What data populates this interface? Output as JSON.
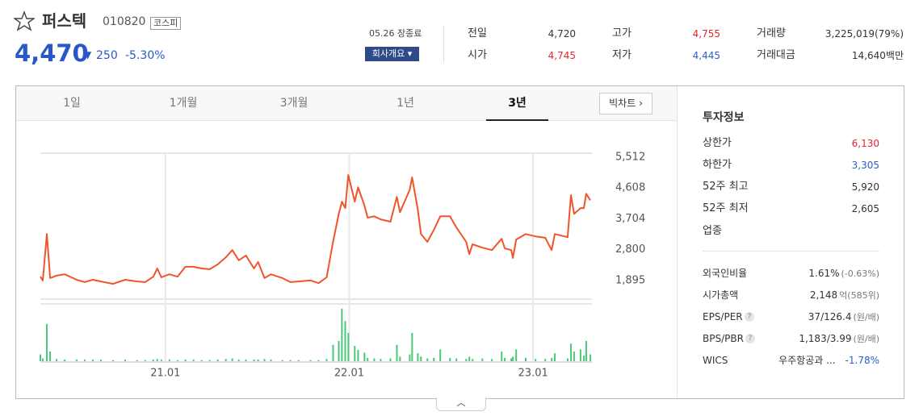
{
  "header": {
    "name": "퍼스텍",
    "code": "010820",
    "market": "코스피",
    "price": "4,470",
    "change": "250",
    "change_rate": "-5.30%",
    "status": "05.26 장종료",
    "company_button": "회사개요"
  },
  "quotes": [
    {
      "label": "전일",
      "value": "4,720",
      "color": "#333333"
    },
    {
      "label": "시가",
      "value": "4,745",
      "color": "#e0262f"
    },
    {
      "label": "고가",
      "value": "4,755",
      "color": "#e0262f"
    },
    {
      "label": "저가",
      "value": "4,445",
      "color": "#2e5cc8"
    },
    {
      "label": "거래량",
      "value": "3,225,019(79%)",
      "color": "#333333"
    },
    {
      "label": "거래대금",
      "value": "14,640백만",
      "color": "#333333"
    }
  ],
  "tabs": [
    "1일",
    "1개월",
    "3개월",
    "1년",
    "3년"
  ],
  "big_chart_button": "빅차트",
  "invest_info": {
    "title": "투자정보",
    "rows": [
      {
        "label": "상한가",
        "value": "6,130",
        "color": "#e0262f"
      },
      {
        "label": "하한가",
        "value": "3,305",
        "color": "#2e5cc8"
      },
      {
        "label": "52주 최고",
        "value": "5,920",
        "color": "#333333"
      },
      {
        "label": "52주 최저",
        "value": "2,605",
        "color": "#333333"
      },
      {
        "label": "업종"
      }
    ],
    "rows2": [
      {
        "label": "외국인비율",
        "value": "1.61%",
        "note": "(-0.63%)"
      },
      {
        "label": "시가총액",
        "value": "2,148",
        "note": "억(585위)"
      },
      {
        "label": "EPS/PER",
        "value": "37/126.4",
        "note": "(원/배)"
      },
      {
        "label": "BPS/PBR",
        "value": "1,183/3.99",
        "note": "(원/배)"
      },
      {
        "label": "WICS",
        "value": "우주항공과 ...",
        "note": "-1.78%"
      }
    ]
  },
  "chart_data": {
    "type": "line",
    "x": [
      2020.32,
      2020.333,
      2020.355,
      2020.373,
      2020.408,
      2020.452,
      2020.517,
      2020.561,
      2020.605,
      2020.649,
      2020.715,
      2020.781,
      2020.846,
      2020.89,
      2020.934,
      2020.956,
      2020.978,
      2021.022,
      2021.066,
      2021.109,
      2021.153,
      2021.197,
      2021.241,
      2021.285,
      2021.329,
      2021.364,
      2021.399,
      2021.438,
      2021.482,
      2021.504,
      2021.539,
      2021.574,
      2021.636,
      2021.68,
      2021.724,
      2021.789,
      2021.833,
      2021.877,
      2021.912,
      2021.943,
      2021.96,
      2021.978,
      2021.995,
      2022.03,
      2022.048,
      2022.083,
      2022.1,
      2022.136,
      2022.171,
      2022.224,
      2022.259,
      2022.276,
      2022.329,
      2022.342,
      2022.373,
      2022.39,
      2022.425,
      2022.46,
      2022.495,
      2022.548,
      2022.583,
      2022.636,
      2022.653,
      2022.671,
      2022.724,
      2022.776,
      2022.829,
      2022.846,
      2022.881,
      2022.89,
      2022.908,
      2022.96,
      2023.013,
      2023.066,
      2023.101,
      2023.118,
      2023.188,
      2023.206,
      2023.223,
      2023.258,
      2023.276,
      2023.289,
      2023.311
    ],
    "series": [
      {
        "type": "line",
        "color": "#f1542a",
        "values": [
          2010,
          1895,
          3260,
          1970,
          2040,
          2080,
          1920,
          1850,
          1920,
          1870,
          1800,
          1920,
          1870,
          1850,
          2010,
          2250,
          1990,
          2080,
          2010,
          2300,
          2300,
          2250,
          2230,
          2370,
          2580,
          2790,
          2490,
          2630,
          2250,
          2440,
          1970,
          2080,
          1970,
          1850,
          1870,
          1900,
          1820,
          1990,
          3030,
          3850,
          4210,
          4020,
          4990,
          4210,
          4630,
          4090,
          3740,
          3780,
          3690,
          3620,
          4350,
          3900,
          4560,
          4920,
          3970,
          3260,
          3030,
          3380,
          3780,
          3780,
          3450,
          3030,
          2670,
          2960,
          2860,
          2790,
          3120,
          2840,
          2790,
          2560,
          3100,
          3260,
          3190,
          3150,
          2790,
          3260,
          3170,
          4400,
          3850,
          4020,
          4020,
          4440,
          4250
        ]
      },
      {
        "type": "bar",
        "axis": "y2",
        "color": "#4cc77a",
        "values": [
          12,
          5,
          66,
          17,
          4,
          3,
          3,
          3,
          3,
          3,
          2,
          3,
          2,
          2,
          3,
          4,
          3,
          3,
          2,
          3,
          3,
          2,
          2,
          3,
          4,
          5,
          3,
          3,
          3,
          3,
          4,
          3,
          2,
          2,
          2,
          2,
          2,
          4,
          29,
          36,
          93,
          71,
          50,
          27,
          20,
          15,
          6,
          5,
          4,
          5,
          29,
          8,
          12,
          50,
          14,
          8,
          5,
          6,
          21,
          6,
          5,
          4,
          8,
          4,
          5,
          4,
          17,
          6,
          5,
          8,
          21,
          6,
          4,
          4,
          6,
          14,
          5,
          31,
          17,
          21,
          10,
          36,
          12
        ]
      }
    ],
    "xlim": [
      2020.32,
      2023.32
    ],
    "xticks": [
      {
        "value": 2021,
        "label": "21.01"
      },
      {
        "value": 2022,
        "label": "22.01"
      },
      {
        "value": 2023,
        "label": "23.01"
      }
    ],
    "ylim": [
      1376,
      5630
    ],
    "yticks": [
      {
        "value": 1895,
        "label": "1,895"
      },
      {
        "value": 2800,
        "label": "2,800"
      },
      {
        "value": 3704,
        "label": "3,704"
      },
      {
        "value": 4608,
        "label": "4,608"
      },
      {
        "value": 5512,
        "label": "5,512"
      }
    ],
    "y2lim": [
      0,
      100
    ],
    "grid": true
  }
}
